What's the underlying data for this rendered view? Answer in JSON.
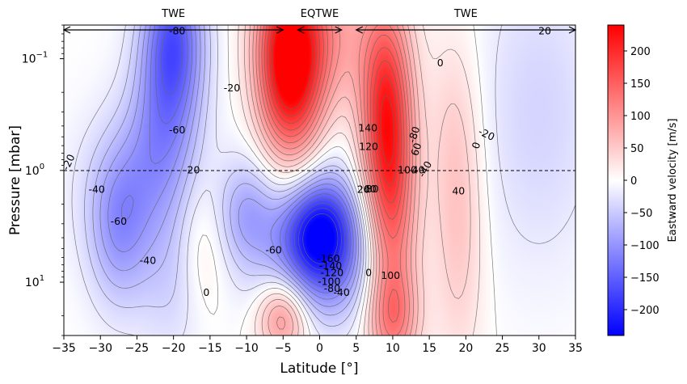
{
  "chart_data": {
    "type": "heatmap",
    "title": "",
    "xlabel": "Latitude [°]",
    "ylabel": "Pressure [mbar]",
    "xlim": [
      -35,
      35
    ],
    "ylim": [
      30,
      0.05
    ],
    "yscale": "log",
    "x_ticks": [
      {
        "value": -35,
        "label": "−35"
      },
      {
        "value": -30,
        "label": "−30"
      },
      {
        "value": -25,
        "label": "−25"
      },
      {
        "value": -20,
        "label": "−20"
      },
      {
        "value": -15,
        "label": "−15"
      },
      {
        "value": -10,
        "label": "−10"
      },
      {
        "value": -5,
        "label": "−5"
      },
      {
        "value": 0,
        "label": "0"
      },
      {
        "value": 5,
        "label": "5"
      },
      {
        "value": 10,
        "label": "10"
      },
      {
        "value": 15,
        "label": "15"
      },
      {
        "value": 20,
        "label": "20"
      },
      {
        "value": 25,
        "label": "25"
      },
      {
        "value": 30,
        "label": "30"
      },
      {
        "value": 35,
        "label": "35"
      }
    ],
    "y_ticks": [
      {
        "value": 0.1,
        "base": "10",
        "exp": "−1"
      },
      {
        "value": 1,
        "base": "10",
        "exp": "0"
      },
      {
        "value": 10,
        "base": "10",
        "exp": "1"
      }
    ],
    "reference_line": {
      "pressure": 1,
      "style": "dashed"
    },
    "regions": [
      {
        "label": "TWE",
        "lat_start": -35,
        "lat_end": -5
      },
      {
        "label": "EQTWE",
        "lat_start": -3,
        "lat_end": 3
      },
      {
        "label": "TWE",
        "lat_start": 5,
        "lat_end": 35
      }
    ],
    "colorbar": {
      "label": "Eastward velocity [m/s]",
      "range": [
        -240,
        240
      ],
      "ticks": [
        200,
        150,
        100,
        50,
        0,
        -50,
        -100,
        -150,
        -200
      ],
      "colormap": "bwr",
      "low_color": "#0000ff",
      "mid_color": "#ffffff",
      "high_color": "#ff0000"
    },
    "features": [
      {
        "lat": 0,
        "pressure": 3.6,
        "value": -230,
        "dlat": 3.8,
        "dlogp": 0.33
      },
      {
        "lat": -1.5,
        "pressure": 1.0,
        "value": -35,
        "dlat": 4.5,
        "dlogp": 0.4
      },
      {
        "lat": -20,
        "pressure": 0.06,
        "value": -120,
        "dlat": 3.0,
        "dlogp": 0.5
      },
      {
        "lat": -20,
        "pressure": 0.14,
        "value": -45,
        "dlat": 3.0,
        "dlogp": 0.6
      },
      {
        "lat": -22,
        "pressure": 0.5,
        "value": -60,
        "dlat": 3.5,
        "dlogp": 0.55
      },
      {
        "lat": -27.5,
        "pressure": 3.5,
        "value": -80,
        "dlat": 3.0,
        "dlogp": 0.5
      },
      {
        "lat": -25,
        "pressure": 1.3,
        "value": -40,
        "dlat": 6.0,
        "dlogp": 0.5
      },
      {
        "lat": -20,
        "pressure": 10,
        "value": -40,
        "dlat": 3.5,
        "dlogp": 0.5
      },
      {
        "lat": -10,
        "pressure": 2.5,
        "value": -80,
        "dlat": 3.0,
        "dlogp": 0.35
      },
      {
        "lat": 0,
        "pressure": 10,
        "value": -70,
        "dlat": 6.0,
        "dlogp": 0.35
      },
      {
        "lat": 30,
        "pressure": 0.3,
        "value": -40,
        "dlat": 6.0,
        "dlogp": 1.0
      },
      {
        "lat": -3,
        "pressure": 0.15,
        "value": 170,
        "dlat": 2.8,
        "dlogp": 0.65
      },
      {
        "lat": -6,
        "pressure": 0.1,
        "value": 110,
        "dlat": 2.5,
        "dlogp": 0.6
      },
      {
        "lat": 0,
        "pressure": 0.06,
        "value": 90,
        "dlat": 5.0,
        "dlogp": 0.5
      },
      {
        "lat": 9,
        "pressure": 0.3,
        "value": 170,
        "dlat": 2.5,
        "dlogp": 0.7
      },
      {
        "lat": 10,
        "pressure": 3.0,
        "value": 110,
        "dlat": 2.5,
        "dlogp": 0.9
      },
      {
        "lat": 19,
        "pressure": 3.0,
        "value": 55,
        "dlat": 2.5,
        "dlogp": 0.9
      },
      {
        "lat": 18,
        "pressure": 0.3,
        "value": 20,
        "dlat": 2.5,
        "dlogp": 0.6
      },
      {
        "lat": -16,
        "pressure": 5.0,
        "value": 40,
        "dlat": 2.5,
        "dlogp": 0.45
      },
      {
        "lat": -5,
        "pressure": 20,
        "value": 120,
        "dlat": 2.5,
        "dlogp": 0.25
      },
      {
        "lat": 10,
        "pressure": 20,
        "value": 80,
        "dlat": 2.5,
        "dlogp": 0.3
      }
    ],
    "contour_levels": [
      -220,
      -200,
      -180,
      -160,
      -140,
      -120,
      -100,
      -80,
      -60,
      -40,
      -20,
      0,
      20,
      40,
      60,
      80,
      100,
      120,
      140,
      160,
      180,
      200,
      220
    ],
    "contour_labels": [
      {
        "text": "-80",
        "lat": -19.5,
        "pressure": 0.057,
        "rotate": 0
      },
      {
        "text": "-20",
        "lat": -12,
        "pressure": 0.185,
        "rotate": 0
      },
      {
        "text": "-60",
        "lat": -19.5,
        "pressure": 0.44,
        "rotate": 0
      },
      {
        "text": "-20",
        "lat": -34.3,
        "pressure": 0.85,
        "rotate": -65
      },
      {
        "text": "-20",
        "lat": -17.5,
        "pressure": 1.0,
        "rotate": 0
      },
      {
        "text": "-40",
        "lat": -30.5,
        "pressure": 1.5,
        "rotate": 0
      },
      {
        "text": "-60",
        "lat": -27.5,
        "pressure": 2.9,
        "rotate": 0
      },
      {
        "text": "-40",
        "lat": -23.5,
        "pressure": 6.5,
        "rotate": 0
      },
      {
        "text": "-60",
        "lat": -6.3,
        "pressure": 5.2,
        "rotate": 0
      },
      {
        "text": "0",
        "lat": -15.5,
        "pressure": 12.5,
        "rotate": 0
      },
      {
        "text": "-160",
        "lat": 1.2,
        "pressure": 6.2,
        "rotate": 0
      },
      {
        "text": "-140",
        "lat": 1.5,
        "pressure": 7.2,
        "rotate": 0
      },
      {
        "text": "-120",
        "lat": 1.7,
        "pressure": 8.3,
        "rotate": 0
      },
      {
        "text": "-100",
        "lat": 1.3,
        "pressure": 10,
        "rotate": 0
      },
      {
        "text": "-80",
        "lat": 1.7,
        "pressure": 11.5,
        "rotate": 0
      },
      {
        "text": "-40",
        "lat": 3.0,
        "pressure": 12.5,
        "rotate": 0
      },
      {
        "text": "0",
        "lat": 6.7,
        "pressure": 8.3,
        "rotate": 0
      },
      {
        "text": "100",
        "lat": 9.7,
        "pressure": 8.8,
        "rotate": 0
      },
      {
        "text": "20",
        "lat": 30.8,
        "pressure": 0.057,
        "rotate": 0
      },
      {
        "text": "0",
        "lat": 16.5,
        "pressure": 0.11,
        "rotate": 0
      },
      {
        "text": "140",
        "lat": 6.6,
        "pressure": 0.42,
        "rotate": 0
      },
      {
        "text": "120",
        "lat": 6.7,
        "pressure": 0.62,
        "rotate": 0
      },
      {
        "text": "-80",
        "lat": 13.0,
        "pressure": 0.48,
        "rotate": -72
      },
      {
        "text": "60",
        "lat": 13.3,
        "pressure": 0.65,
        "rotate": -72
      },
      {
        "text": "-20",
        "lat": 22.8,
        "pressure": 0.48,
        "rotate": 25
      },
      {
        "text": "0",
        "lat": 21.5,
        "pressure": 0.6,
        "rotate": -72
      },
      {
        "text": "100",
        "lat": 12.0,
        "pressure": 1.0,
        "rotate": 0
      },
      {
        "text": "40",
        "lat": 13.5,
        "pressure": 1.0,
        "rotate": 0
      },
      {
        "text": "-40",
        "lat": 14.5,
        "pressure": 0.98,
        "rotate": -60
      },
      {
        "text": "20",
        "lat": 6.0,
        "pressure": 1.5,
        "rotate": 0
      },
      {
        "text": "60",
        "lat": 6.9,
        "pressure": 1.48,
        "rotate": 0
      },
      {
        "text": "80",
        "lat": 7.2,
        "pressure": 1.48,
        "rotate": 0
      },
      {
        "text": "40",
        "lat": 19.0,
        "pressure": 1.55,
        "rotate": 0
      }
    ]
  }
}
